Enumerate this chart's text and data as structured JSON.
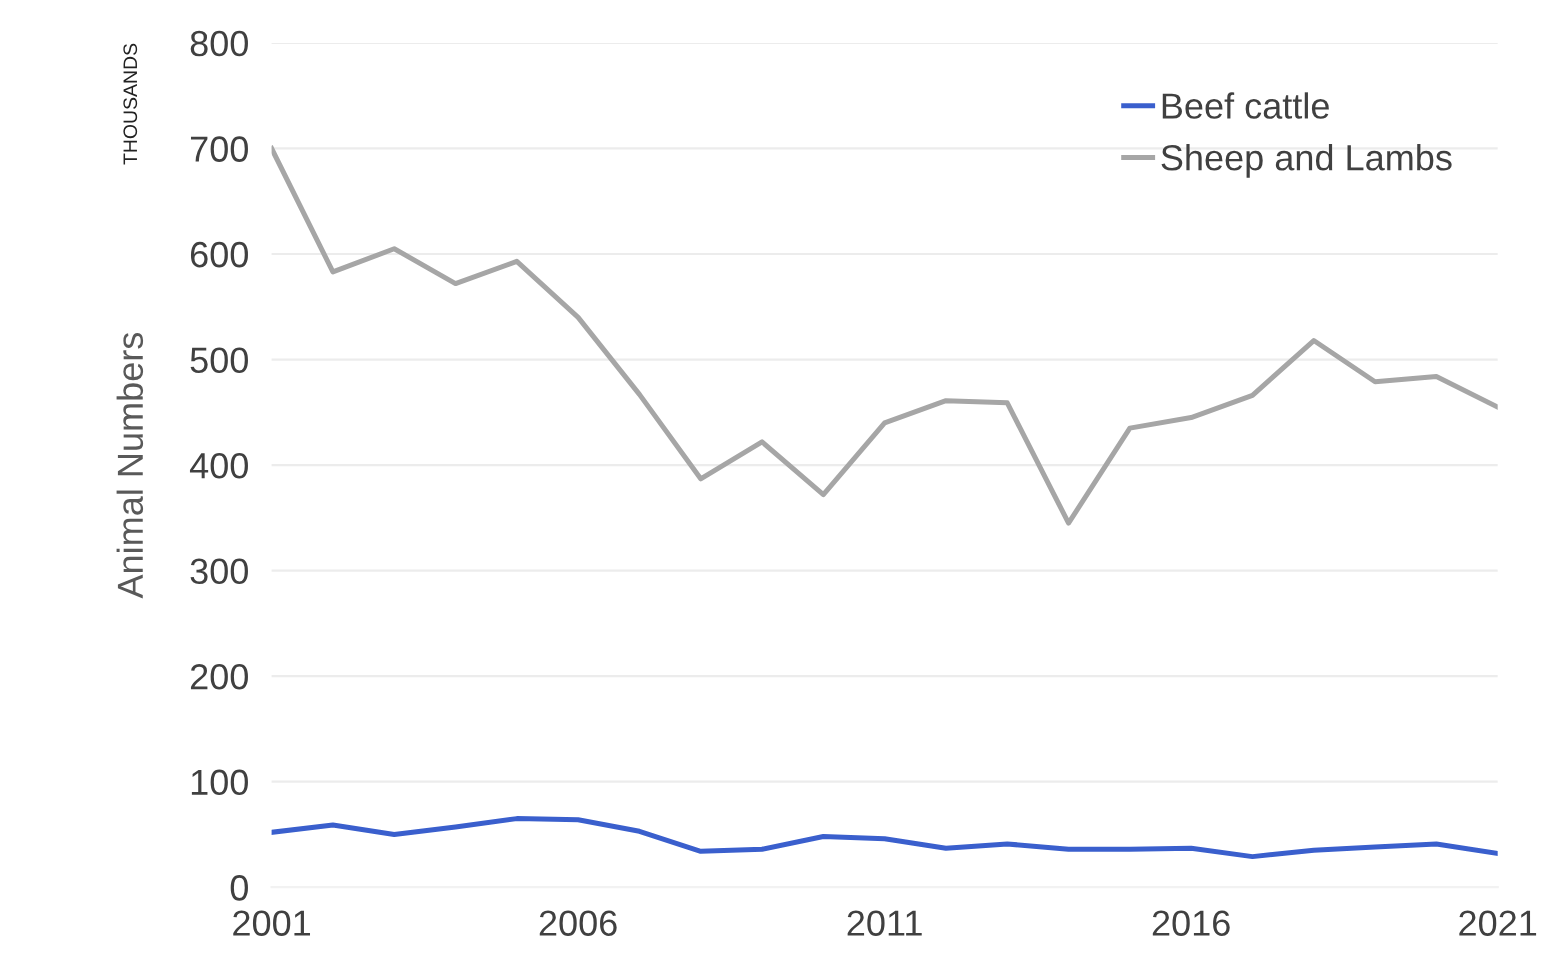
{
  "chart_data": {
    "type": "line",
    "ylabel": "Animal Numbers",
    "annotations": [
      "THOUSANDS"
    ],
    "x": [
      2001,
      2002,
      2003,
      2004,
      2005,
      2006,
      2007,
      2008,
      2009,
      2010,
      2011,
      2012,
      2013,
      2014,
      2015,
      2016,
      2017,
      2018,
      2019,
      2020,
      2021
    ],
    "series": [
      {
        "name": "Beef cattle",
        "color": "#3a5fcd",
        "values": [
          52,
          59,
          50,
          57,
          65,
          64,
          53,
          34,
          36,
          48,
          46,
          37,
          41,
          36,
          36,
          37,
          29,
          35,
          38,
          41,
          32
        ]
      },
      {
        "name": "Sheep and Lambs",
        "color": "#a6a6a6",
        "values": [
          700,
          583,
          605,
          572,
          593,
          540,
          467,
          387,
          422,
          372,
          440,
          461,
          459,
          345,
          435,
          445,
          466,
          518,
          479,
          484,
          455
        ]
      }
    ],
    "xlim": [
      2001,
      2021
    ],
    "xticks": [
      2001,
      2006,
      2011,
      2016,
      2021
    ],
    "ylim": [
      0,
      800
    ],
    "yticks": [
      0,
      100,
      200,
      300,
      400,
      500,
      600,
      700,
      800
    ],
    "grid": "y",
    "legend": "top right",
    "line_style": "solid",
    "marker": "none"
  }
}
